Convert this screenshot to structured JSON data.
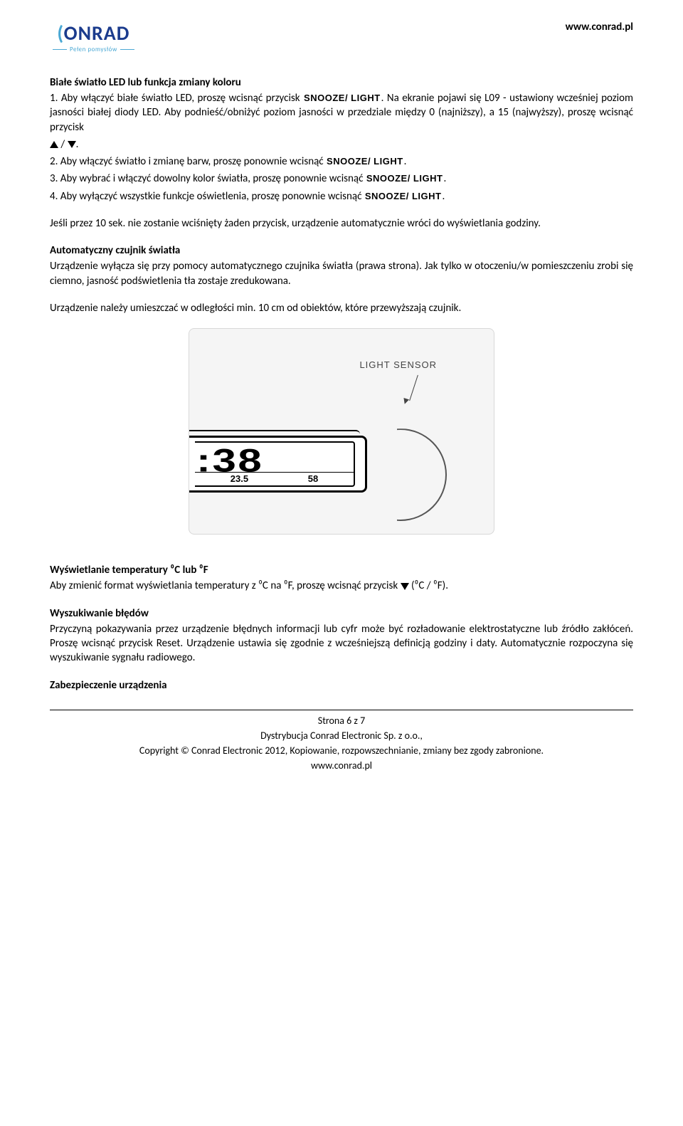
{
  "header": {
    "logo_main_paren_open": "(",
    "logo_main_text": "ONRAD",
    "logo_sub": "Pełen pomysłów",
    "url": "www.conrad.pl"
  },
  "section1": {
    "heading": "Białe światło LED lub funkcja zmiany koloru",
    "line1a": "1. Aby włączyć białe światło LED, proszę wcisnąć przycisk ",
    "btn1": "SNOOZE/ LIGHT",
    "line1b": ". Na ekranie pojawi się L09 - ustawiony wcześniej poziom jasności białej diody LED. Aby podnieść/obniżyć poziom jasności w przedziale między 0 (najniższy), a 15 (najwyższy), proszę wcisnąć przycisk",
    "slash": " / ",
    "dot1": ".",
    "line2a": "2. Aby włączyć światło i zmianę barw, proszę ponownie wcisnąć ",
    "btn2": "SNOOZE/ LIGHT",
    "dot2": ".",
    "line3a": "3. Aby wybrać i włączyć dowolny kolor światła, proszę ponownie wcisnąć ",
    "btn3": "SNOOZE/ LIGHT",
    "dot3": ".",
    "line4a": "4. Aby wyłączyć wszystkie funkcje oświetlenia, proszę ponownie wcisnąć ",
    "btn4": "SNOOZE/ LIGHT",
    "dot4": "."
  },
  "p_timeout": "Jeśli przez 10 sek. nie zostanie wciśnięty żaden przycisk, urządzenie automatycznie wróci do wyświetlania godziny.",
  "section2": {
    "heading": "Automatyczny czujnik światła",
    "body": "Urządzenie wyłącza się przy pomocy automatycznego czujnika światła (prawa strona). Jak tylko w otoczeniu/w pomieszczeniu zrobi się ciemno, jasność podświetlenia tła zostaje zredukowana."
  },
  "p_distance": "Urządzenie należy umieszczać w odległości min. 10 cm od obiektów, które przewyższają czujnik.",
  "figure": {
    "label": "LIGHT SENSOR",
    "big_digits": ":38",
    "small_left": "23.5",
    "small_right": "58"
  },
  "section3": {
    "heading": "Wyświetlanie temperatury ⁰C lub ⁰F",
    "body_a": "Aby zmienić format wyświetlania temperatury z ⁰C na ⁰F, proszę wcisnąć przycisk ",
    "body_b": " (⁰C / ⁰F)."
  },
  "section4": {
    "heading": "Wyszukiwanie błędów",
    "body": "Przyczyną pokazywania przez urządzenie błędnych informacji lub cyfr może być rozładowanie elektrostatyczne lub źródło zakłóceń. Proszę wcisnąć przycisk Reset. Urządzenie ustawia się zgodnie z wcześniejszą definicją godziny i daty. Automatycznie rozpoczyna się wyszukiwanie sygnału radiowego."
  },
  "section5": {
    "heading": "Zabezpieczenie urządzenia"
  },
  "footer": {
    "page": "Strona 6 z 7",
    "line1": "Dystrybucja Conrad Electronic Sp. z o.o.,",
    "line2": "Copyright © Conrad Electronic 2012, Kopiowanie, rozpowszechnianie, zmiany bez zgody zabronione.",
    "line3": "www.conrad.pl"
  }
}
